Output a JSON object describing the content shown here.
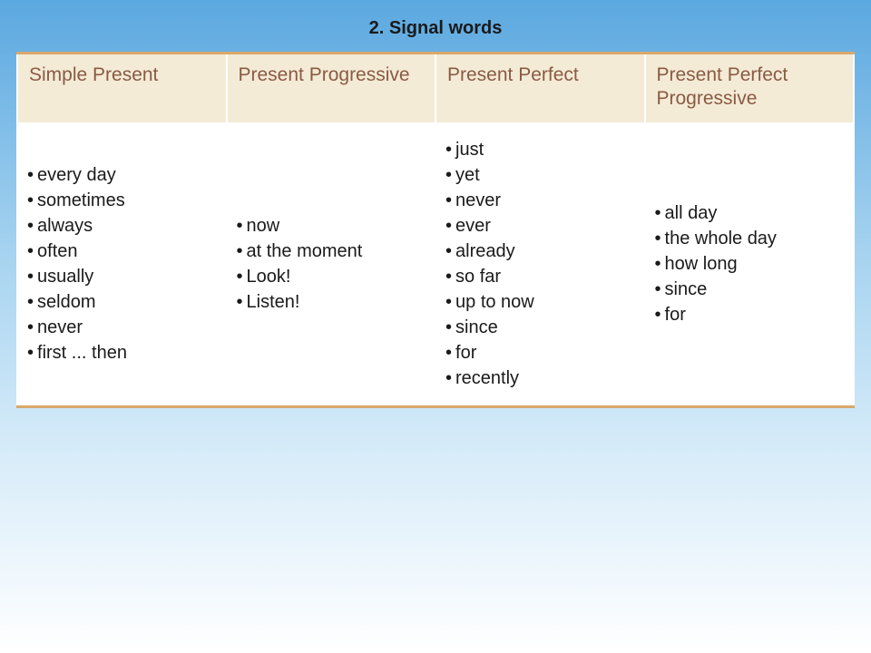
{
  "title": "2. Signal words",
  "table": {
    "columns": [
      "Simple Present",
      "Present Progressive",
      "Present Perfect",
      "Present Perfect Progressive"
    ],
    "rows": [
      [
        [
          "every day",
          "sometimes",
          "always",
          "often",
          "usually",
          "seldom",
          "never",
          "first ... then"
        ],
        [
          "now",
          "at the moment",
          "Look!",
          "Listen!"
        ],
        [
          "just",
          "yet",
          "never",
          "ever",
          "already",
          "so far",
          "up to now",
          "since",
          "for",
          "recently"
        ],
        [
          "all day",
          "the whole day",
          "how long",
          "since",
          "for"
        ]
      ]
    ],
    "header_bg": "#f4ebd6",
    "header_text_color": "#8a5a44",
    "accent_border": "#d9a86c",
    "cell_bg": "#ffffff",
    "body_font_size": 20,
    "header_font_size": 21
  },
  "background": {
    "gradient_top": "#5ba8e0",
    "gradient_mid": "#a8d4f0",
    "gradient_low": "#d8ecf9",
    "gradient_bottom": "#ffffff"
  }
}
